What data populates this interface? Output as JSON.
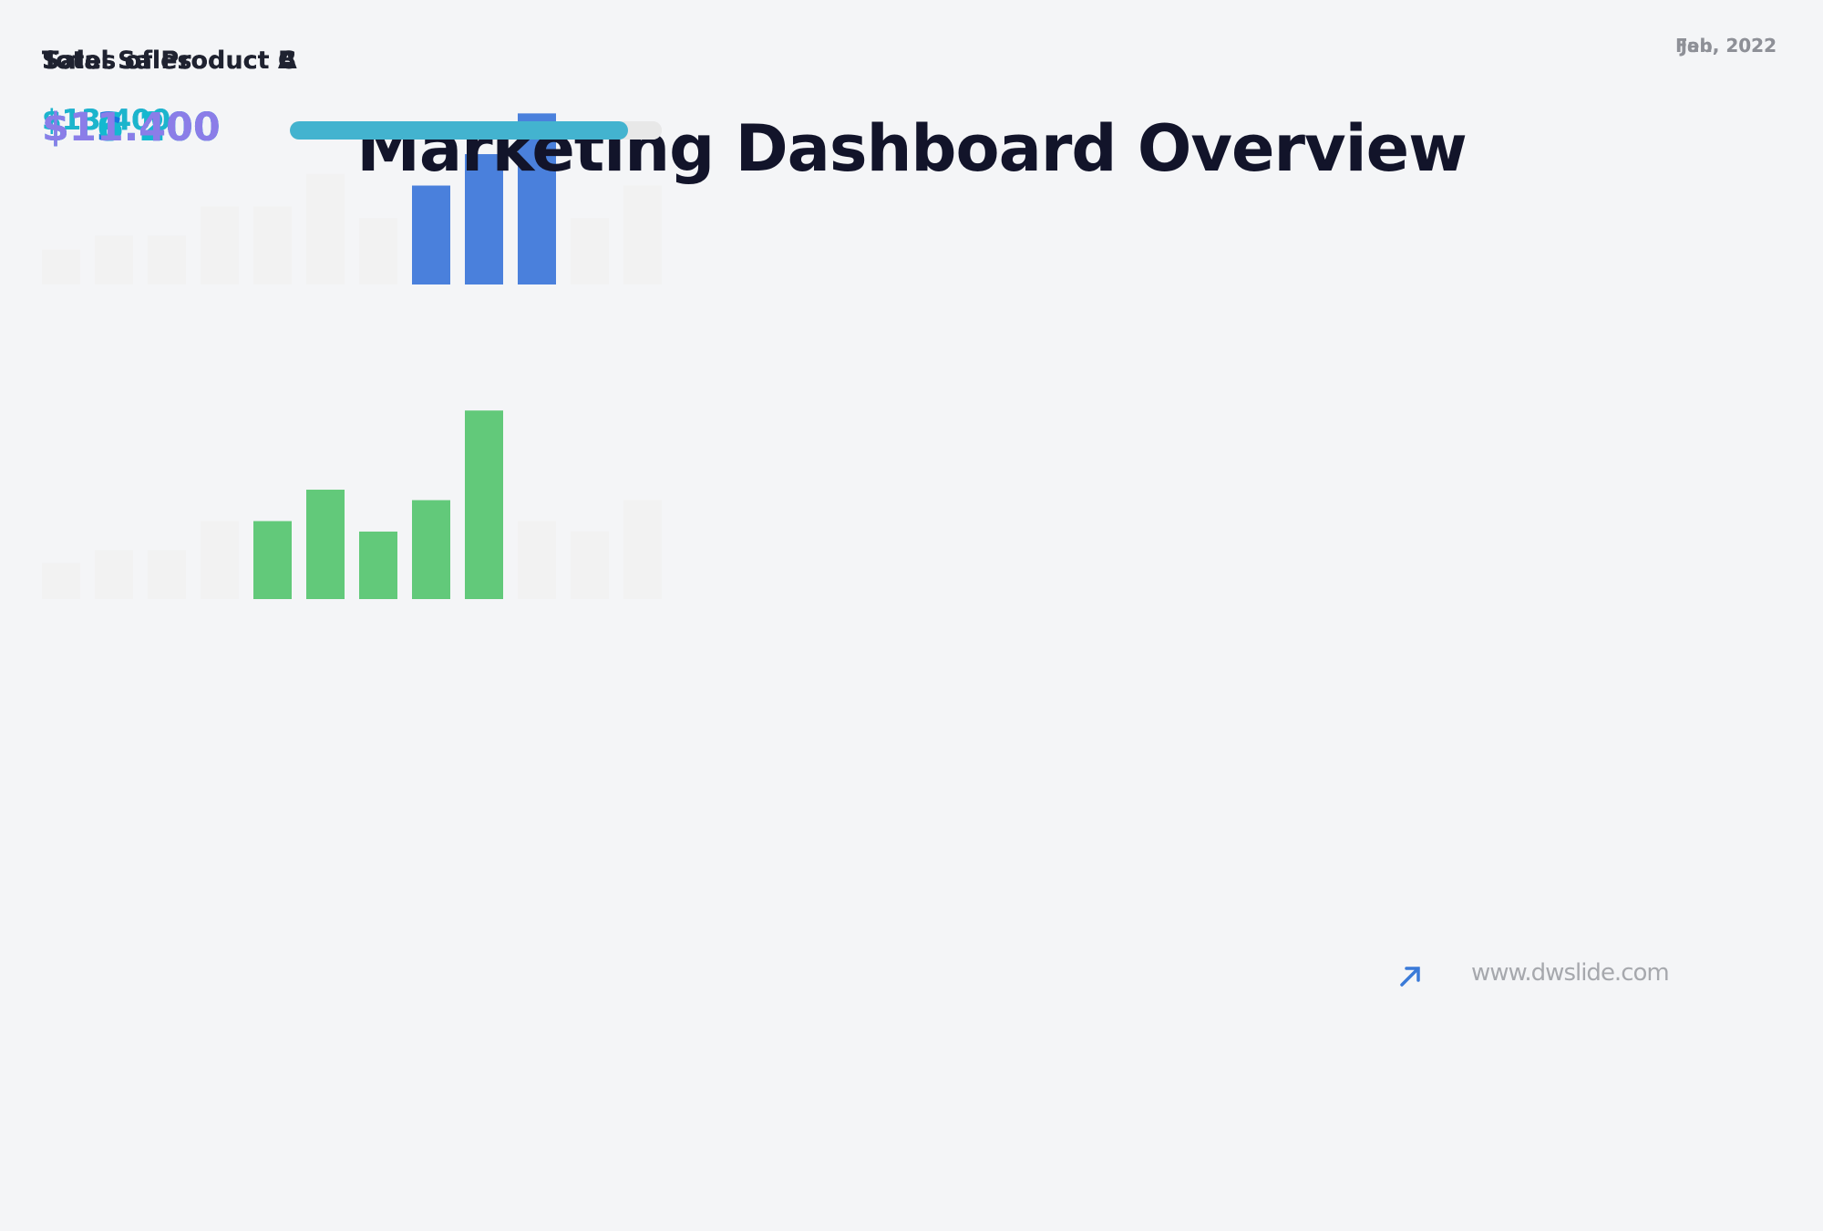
{
  "title": "Marketing Dashboard Overview",
  "sales_cards": [
    {
      "label": "Total Sales",
      "date": "Jan, 2022",
      "value": "$13.400",
      "value_color": "#1a7be0",
      "chart": {
        "type": "bar",
        "values": [
          30,
          42,
          42,
          67,
          67,
          95,
          57,
          85,
          112,
          147,
          57,
          85
        ],
        "colors": [
          "#f2f2f2",
          "#f2f2f2",
          "#f2f2f2",
          "#f2f2f2",
          "#f2f2f2",
          "#f2f2f2",
          "#f2f2f2",
          "#4a80dc",
          "#4a80dc",
          "#4a80dc",
          "#f2f2f2",
          "#f2f2f2"
        ],
        "ylim": [
          0,
          170
        ]
      }
    },
    {
      "label": "Total Sales",
      "date": "Feb, 2022",
      "value": "$13.400",
      "value_color": "#1cb5cc",
      "chart": {
        "type": "bar",
        "values": [
          31,
          42,
          42,
          67,
          67,
          94,
          58,
          85,
          162,
          67,
          58,
          85
        ],
        "colors": [
          "#f2f2f2",
          "#f2f2f2",
          "#f2f2f2",
          "#f2f2f2",
          "#62c97a",
          "#62c97a",
          "#62c97a",
          "#62c97a",
          "#62c97a",
          "#f2f2f2",
          "#f2f2f2",
          "#f2f2f2"
        ],
        "ylim": [
          0,
          170
        ]
      }
    }
  ],
  "product_cards": [
    {
      "label": "Sales of Product A",
      "value": "$13.400",
      "value_color": "#1479e0",
      "progress": {
        "type": "progress",
        "value": 84,
        "xlim": [
          0,
          100
        ],
        "color": "#4a80dc"
      }
    },
    {
      "label": "Sales of Product B",
      "value": "$16.200",
      "value_color": "#14b8d0",
      "progress": {
        "type": "progress",
        "value": 84,
        "xlim": [
          0,
          100
        ],
        "color": "#62c97a"
      }
    },
    {
      "label": "Sales of Product C",
      "value": "$11.400",
      "value_color": "#8b7de8",
      "progress": {
        "type": "progress",
        "value": 91,
        "xlim": [
          0,
          100
        ],
        "color": "#43b3cf"
      }
    }
  ],
  "footer": {
    "url": "www.dwslide.com"
  }
}
